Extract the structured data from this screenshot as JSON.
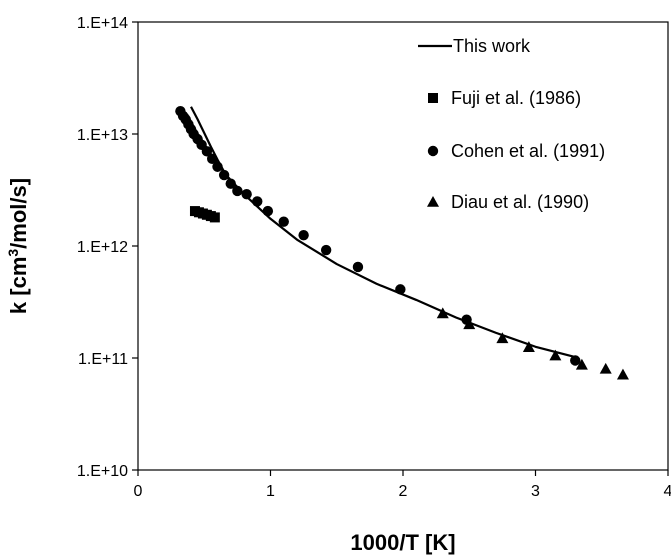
{
  "chart_data": {
    "type": "scatter",
    "title": "",
    "xlabel": "1000/T [K]",
    "ylabel_prefix": "k  [cm",
    "ylabel_sup": "3",
    "ylabel_suffix": "/mol/s]",
    "xlim": [
      0,
      4
    ],
    "ylim": [
      10000000000.0,
      100000000000000.0
    ],
    "yscale": "log",
    "grid": false,
    "legend_position": "top-right",
    "x_ticks": [
      0,
      1,
      2,
      3,
      4
    ],
    "x_tick_labels": [
      "0",
      "1",
      "2",
      "3",
      "4"
    ],
    "y_ticks": [
      10000000000.0,
      100000000000.0,
      1000000000000.0,
      10000000000000.0,
      100000000000000.0
    ],
    "y_tick_labels": [
      "1.E+10",
      "1.E+11",
      "1.E+12",
      "1.E+13",
      "1.E+14"
    ],
    "series": [
      {
        "name": "This work",
        "kind": "line",
        "color": "#000000",
        "x": [
          0.37,
          0.45,
          0.55,
          0.65,
          0.8,
          1.0,
          1.2,
          1.5,
          1.8,
          2.1,
          2.4,
          2.7,
          3.0,
          3.3
        ],
        "y": [
          15000000000000.0,
          10000000000000.0,
          6600000000000.0,
          4500000000000.0,
          2900000000000.0,
          1750000000000.0,
          1140000000000.0,
          690000000000.0,
          460000000000.0,
          330000000000.0,
          230000000000.0,
          168000000000.0,
          126000000000.0,
          102000000000.0
        ]
      },
      {
        "name": "",
        "kind": "line",
        "color": "#000000",
        "x": [
          0.4,
          0.45,
          0.5,
          0.55,
          0.6,
          0.65,
          0.7
        ],
        "y": [
          17500000000000.0,
          13500000000000.0,
          10200000000000.0,
          7700000000000.0,
          5900000000000.0,
          4600000000000.0,
          3700000000000.0
        ]
      },
      {
        "name": "Fuji et al. (1986)",
        "kind": "square",
        "color": "#000000",
        "x": [
          0.43,
          0.46,
          0.49,
          0.52,
          0.55,
          0.58
        ],
        "y": [
          2050000000000.0,
          2000000000000.0,
          1950000000000.0,
          1900000000000.0,
          1850000000000.0,
          1800000000000.0
        ]
      },
      {
        "name": "Cohen et al. (1991)",
        "kind": "circle",
        "color": "#000000",
        "x": [
          0.32,
          0.34,
          0.36,
          0.38,
          0.4,
          0.42,
          0.45,
          0.48,
          0.52,
          0.56,
          0.6,
          0.65,
          0.7,
          0.75,
          0.82,
          0.9,
          0.98,
          1.1,
          1.25,
          1.42,
          1.66,
          1.98,
          2.48,
          3.3
        ],
        "y": [
          16000000000000.0,
          14500000000000.0,
          13500000000000.0,
          12200000000000.0,
          11000000000000.0,
          10000000000000.0,
          9000000000000.0,
          8000000000000.0,
          7000000000000.0,
          6000000000000.0,
          5100000000000.0,
          4300000000000.0,
          3600000000000.0,
          3100000000000.0,
          2900000000000.0,
          2500000000000.0,
          2050000000000.0,
          1650000000000.0,
          1250000000000.0,
          920000000000.0,
          650000000000.0,
          410000000000.0,
          220000000000.0,
          95000000000.0
        ]
      },
      {
        "name": "Diau et al. (1990)",
        "kind": "triangle",
        "color": "#000000",
        "x": [
          2.3,
          2.5,
          2.75,
          2.95,
          3.15,
          3.35,
          3.53,
          3.66
        ],
        "y": [
          250000000000.0,
          200000000000.0,
          150000000000.0,
          125000000000.0,
          105000000000.0,
          87000000000.0,
          80000000000.0,
          71000000000.0
        ]
      }
    ]
  }
}
